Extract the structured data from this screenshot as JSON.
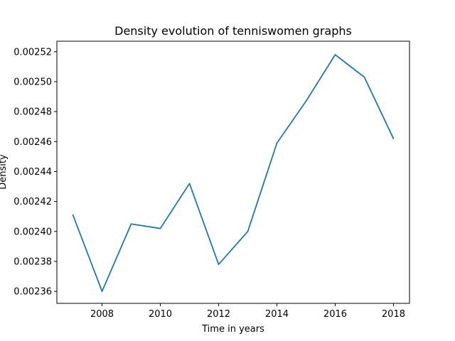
{
  "chart_data": {
    "type": "line",
    "title": "Density evolution of tenniswomen graphs",
    "xlabel": "Time in years",
    "ylabel": "Density",
    "x": [
      2007,
      2008,
      2009,
      2010,
      2011,
      2012,
      2013,
      2014,
      2015,
      2016,
      2017,
      2018
    ],
    "series": [
      {
        "values": [
          0.002411,
          0.00236,
          0.002405,
          0.002402,
          0.002432,
          0.002378,
          0.0024,
          0.002459,
          0.002487,
          0.002518,
          0.002503,
          0.002462
        ],
        "color": "#1f77b4"
      }
    ],
    "xlim": [
      2006.45,
      2018.55
    ],
    "ylim": [
      0.002352,
      0.002527
    ],
    "xticks": [
      2008,
      2010,
      2012,
      2014,
      2016,
      2018
    ],
    "xtick_labels": [
      "2008",
      "2010",
      "2012",
      "2014",
      "2016",
      "2018"
    ],
    "yticks": [
      0.00236,
      0.00238,
      0.0024,
      0.00242,
      0.00244,
      0.00246,
      0.00248,
      0.0025,
      0.00252
    ],
    "ytick_labels": [
      "0.00236",
      "0.00238",
      "0.00240",
      "0.00242",
      "0.00244",
      "0.00246",
      "0.00248",
      "0.00250",
      "0.00252"
    ],
    "grid": false,
    "legend": "none"
  }
}
